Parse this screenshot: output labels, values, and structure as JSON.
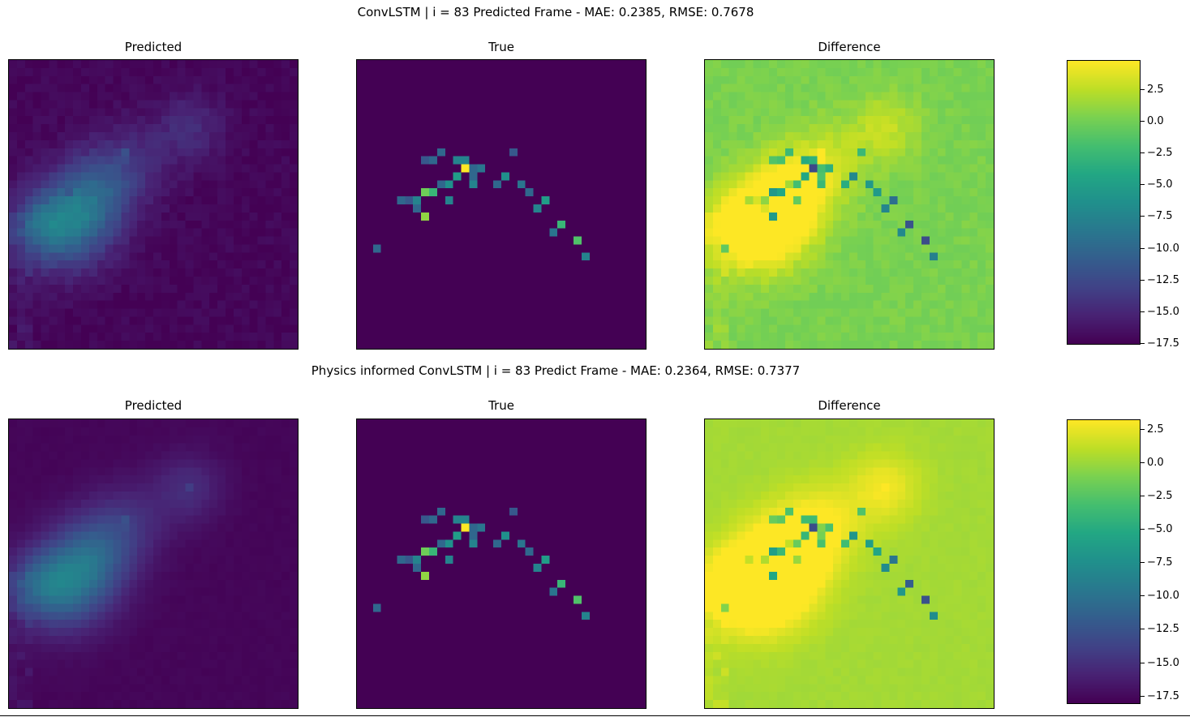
{
  "chart_data": [
    {
      "type": "heatmap",
      "title": "ConvLSTM | i = 83 Predicted Frame - MAE: 0.2385, RMSE: 0.7678",
      "panels": [
        "Predicted",
        "True",
        "Difference"
      ],
      "colormap": "viridis",
      "colorbar": {
        "vmin": -17.5,
        "vmax": 4.8,
        "ticks": [
          2.5,
          0.0,
          -2.5,
          -5.0,
          -7.5,
          -10.0,
          -12.5,
          -15.0,
          -17.5
        ],
        "tick_labels": [
          "2.5",
          "0.0",
          "−2.5",
          "−5.0",
          "−7.5",
          "−10.0",
          "−12.5",
          "−15.0",
          "−17.5"
        ]
      },
      "metrics": {
        "MAE": 0.2385,
        "RMSE": 0.7678
      }
    },
    {
      "type": "heatmap",
      "title": "Physics informed ConvLSTM | i = 83 Predict Frame - MAE: 0.2364, RMSE: 0.7377",
      "panels": [
        "Predicted",
        "True",
        "Difference"
      ],
      "colormap": "viridis",
      "colorbar": {
        "vmin": -18.0,
        "vmax": 3.2,
        "ticks": [
          2.5,
          0.0,
          -2.5,
          -5.0,
          -7.5,
          -10.0,
          -12.5,
          -15.0,
          -17.5
        ],
        "tick_labels": [
          "2.5",
          "0.0",
          "−2.5",
          "−5.0",
          "−7.5",
          "−10.0",
          "−12.5",
          "−15.0",
          "−17.5"
        ]
      },
      "metrics": {
        "MAE": 0.2364,
        "RMSE": 0.7377
      }
    }
  ]
}
